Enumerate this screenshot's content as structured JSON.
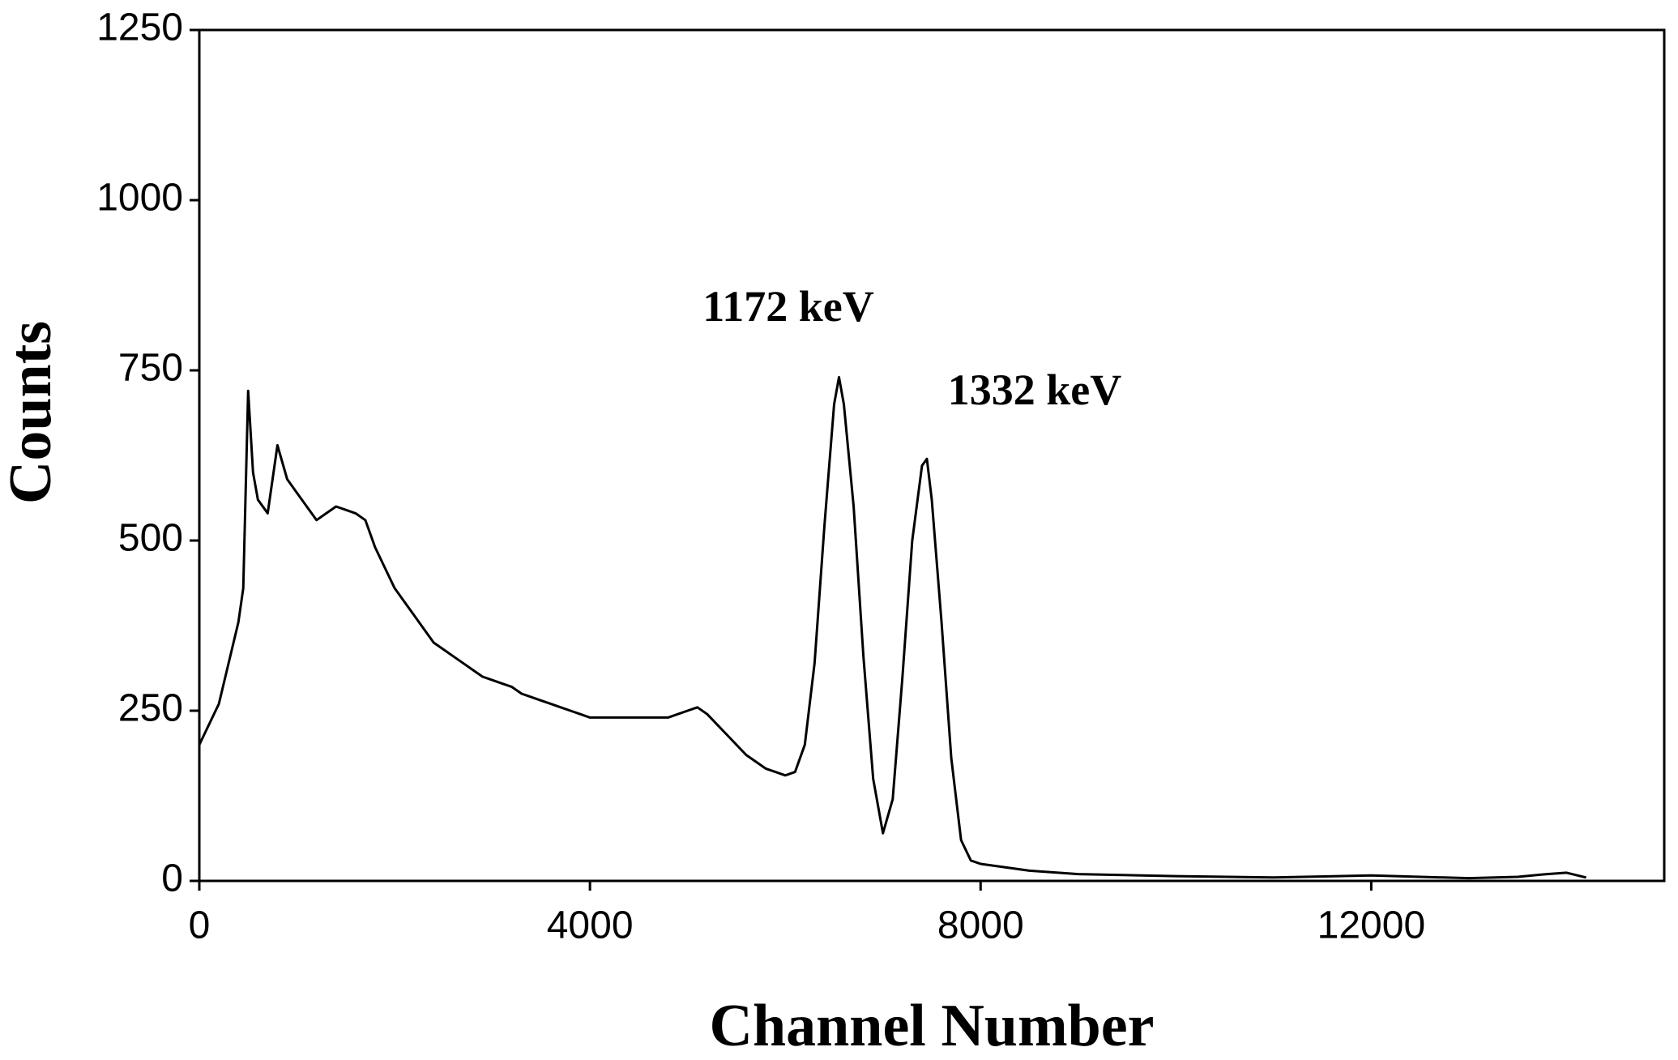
{
  "chart_data": {
    "type": "line",
    "xlabel": "Channel Number",
    "ylabel": "Counts",
    "annotations": [
      "1172 keV",
      "1332 keV"
    ],
    "xlim": [
      0,
      15000
    ],
    "xticks": [
      0,
      4000,
      8000,
      12000
    ],
    "ylim": [
      0,
      1250
    ],
    "yticks": [
      0,
      250,
      500,
      750,
      1000,
      1250
    ],
    "series": [
      {
        "color": "#000000",
        "x": [
          0,
          100,
          200,
          300,
          400,
          450,
          500,
          550,
          600,
          700,
          800,
          900,
          1000,
          1100,
          1200,
          1300,
          1400,
          1500,
          1600,
          1700,
          1800,
          1900,
          2000,
          2100,
          2200,
          2300,
          2400,
          2500,
          2600,
          2700,
          2800,
          2900,
          3000,
          3100,
          3200,
          3300,
          3400,
          3500,
          3600,
          3700,
          3800,
          3900,
          4000,
          4200,
          4400,
          4600,
          4800,
          4900,
          5000,
          5100,
          5200,
          5300,
          5400,
          5500,
          5600,
          5700,
          5800,
          5900,
          6000,
          6100,
          6200,
          6300,
          6400,
          6500,
          6550,
          6600,
          6700,
          6800,
          6900,
          7000,
          7100,
          7200,
          7300,
          7400,
          7450,
          7500,
          7600,
          7700,
          7800,
          7900,
          8000,
          8500,
          9000,
          10000,
          11000,
          12000,
          13000,
          13500,
          13800,
          14000,
          14200
        ],
        "values": [
          200,
          230,
          260,
          320,
          380,
          430,
          720,
          600,
          560,
          540,
          640,
          590,
          570,
          550,
          530,
          540,
          550,
          545,
          540,
          530,
          490,
          460,
          430,
          410,
          390,
          370,
          350,
          340,
          330,
          320,
          310,
          300,
          295,
          290,
          285,
          275,
          270,
          265,
          260,
          255,
          250,
          245,
          240,
          240,
          240,
          240,
          240,
          245,
          250,
          255,
          245,
          230,
          215,
          200,
          185,
          175,
          165,
          160,
          155,
          160,
          200,
          320,
          520,
          700,
          740,
          700,
          550,
          330,
          150,
          70,
          120,
          300,
          500,
          610,
          620,
          560,
          380,
          180,
          60,
          30,
          25,
          15,
          10,
          7,
          5,
          8,
          4,
          6,
          10,
          12,
          5
        ]
      }
    ]
  }
}
